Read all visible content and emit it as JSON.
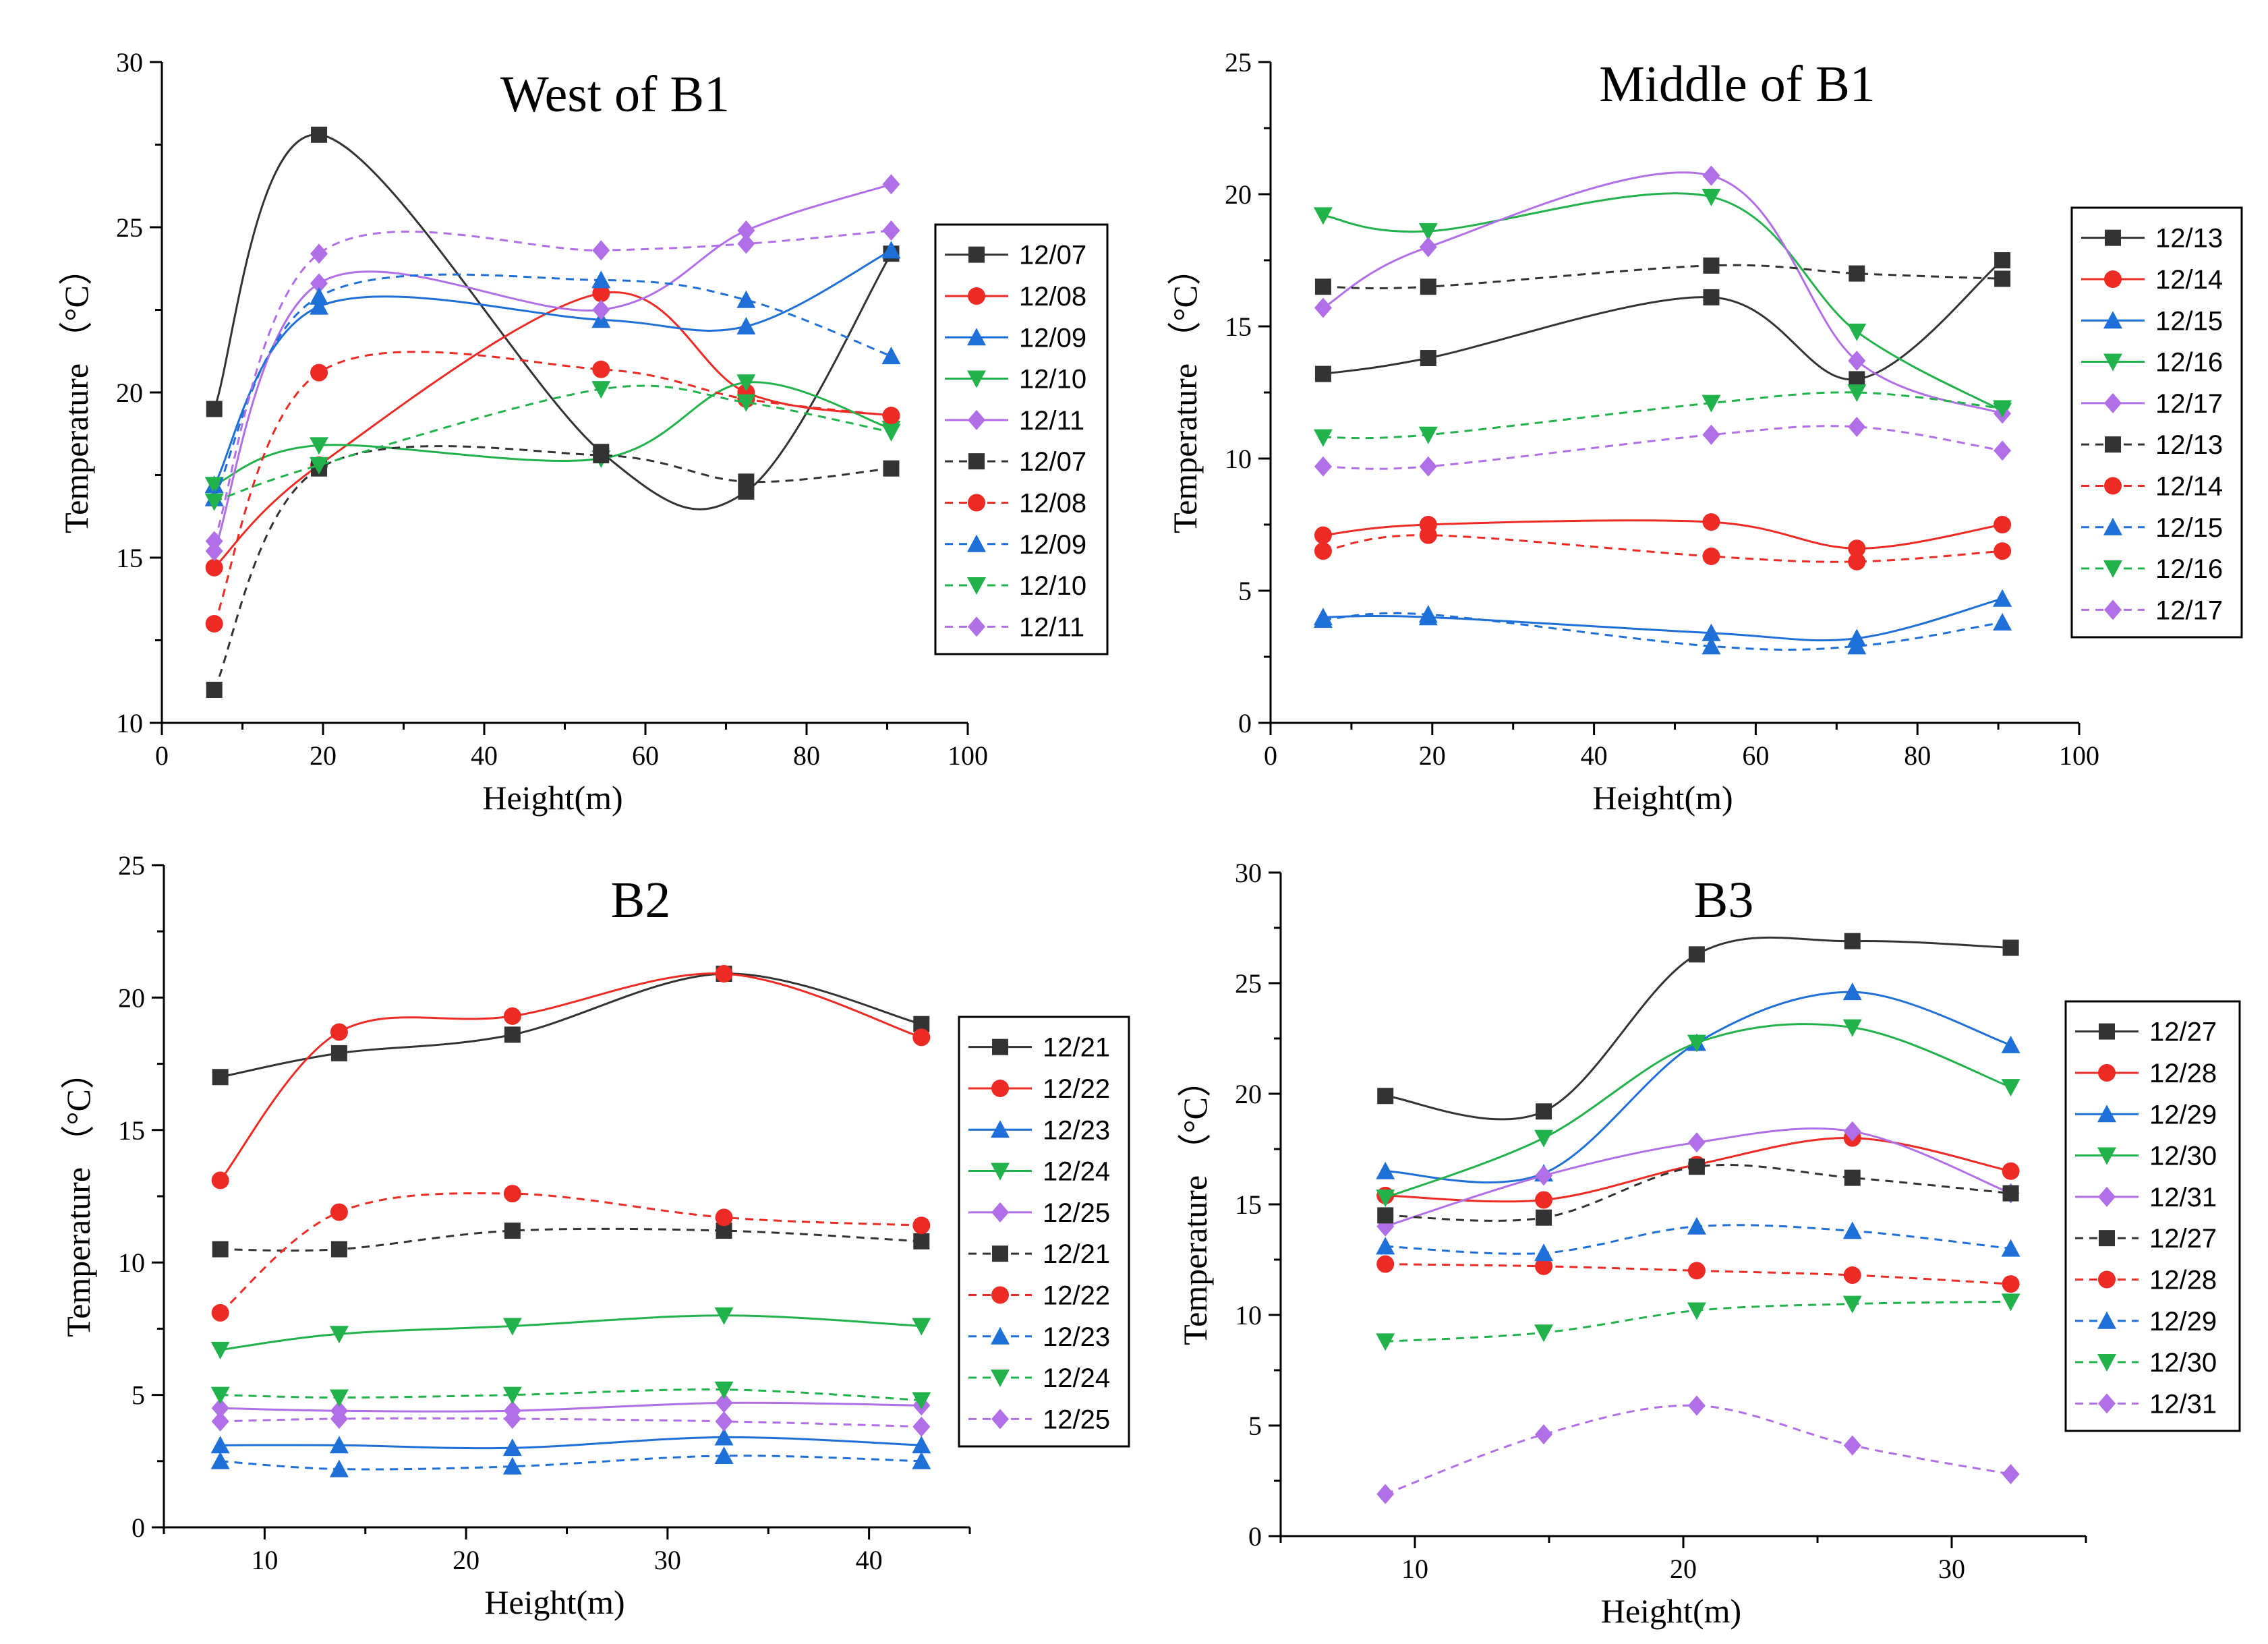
{
  "colors": {
    "black": "#333333",
    "red": "#ee2a24",
    "blue": "#1f6fd8",
    "green": "#22b24c",
    "purple": "#b06fe6",
    "axis": "#000000"
  },
  "chart_data": [
    {
      "type": "line",
      "title": "West of B1",
      "xlabel": "Height(m)",
      "ylabel": "Temperature （°C）",
      "xlim": [
        0,
        100
      ],
      "ylim": [
        10,
        30
      ],
      "xticks": [
        0,
        20,
        40,
        60,
        80,
        100
      ],
      "yticks": [
        10,
        15,
        20,
        25,
        30
      ],
      "legend_position": "right",
      "x": [
        6.5,
        19.5,
        54.5,
        72.5,
        90.5
      ],
      "series": [
        {
          "name": "12/07",
          "color": "black",
          "marker": "square",
          "dash": false,
          "values": [
            19.5,
            27.8,
            18.2,
            17.0,
            24.2
          ]
        },
        {
          "name": "12/08",
          "color": "red",
          "marker": "circle",
          "dash": false,
          "values": [
            14.7,
            17.8,
            23.0,
            20.0,
            19.3
          ]
        },
        {
          "name": "12/09",
          "color": "blue",
          "marker": "triangle-up",
          "dash": false,
          "values": [
            17.2,
            22.6,
            22.2,
            22.0,
            24.3
          ]
        },
        {
          "name": "12/10",
          "color": "green",
          "marker": "triangle-down",
          "dash": false,
          "values": [
            17.2,
            18.4,
            18.0,
            20.3,
            18.9
          ]
        },
        {
          "name": "12/11",
          "color": "purple",
          "marker": "diamond",
          "dash": false,
          "values": [
            15.2,
            23.3,
            22.5,
            24.9,
            26.3
          ]
        },
        {
          "name": "12/07",
          "color": "black",
          "marker": "square",
          "dash": true,
          "values": [
            11.0,
            17.7,
            18.1,
            17.3,
            17.7
          ]
        },
        {
          "name": "12/08",
          "color": "red",
          "marker": "circle",
          "dash": true,
          "values": [
            13.0,
            20.6,
            20.7,
            19.8,
            19.3
          ]
        },
        {
          "name": "12/09",
          "color": "blue",
          "marker": "triangle-up",
          "dash": true,
          "values": [
            16.8,
            22.9,
            23.4,
            22.8,
            21.1
          ]
        },
        {
          "name": "12/10",
          "color": "green",
          "marker": "triangle-down",
          "dash": true,
          "values": [
            16.7,
            17.8,
            20.1,
            19.7,
            18.8
          ]
        },
        {
          "name": "12/11",
          "color": "purple",
          "marker": "diamond",
          "dash": true,
          "values": [
            15.5,
            24.2,
            24.3,
            24.5,
            24.9
          ]
        }
      ]
    },
    {
      "type": "line",
      "title": "Middle of B1",
      "xlabel": "Height(m)",
      "ylabel": "Temperature （°C）",
      "xlim": [
        0,
        100
      ],
      "ylim": [
        0,
        25
      ],
      "xticks": [
        0,
        20,
        40,
        60,
        80,
        100
      ],
      "yticks": [
        0,
        5,
        10,
        15,
        20,
        25
      ],
      "legend_position": "right",
      "x": [
        6.5,
        19.5,
        54.5,
        72.5,
        90.5
      ],
      "series": [
        {
          "name": "12/13",
          "color": "black",
          "marker": "square",
          "dash": false,
          "values": [
            13.2,
            13.8,
            16.1,
            13.0,
            17.5
          ]
        },
        {
          "name": "12/14",
          "color": "red",
          "marker": "circle",
          "dash": false,
          "values": [
            7.1,
            7.5,
            7.6,
            6.6,
            7.5
          ]
        },
        {
          "name": "12/15",
          "color": "blue",
          "marker": "triangle-up",
          "dash": false,
          "values": [
            4.0,
            4.0,
            3.4,
            3.2,
            4.7
          ]
        },
        {
          "name": "12/16",
          "color": "green",
          "marker": "triangle-down",
          "dash": false,
          "values": [
            19.2,
            18.6,
            19.9,
            14.8,
            11.8
          ]
        },
        {
          "name": "12/17",
          "color": "purple",
          "marker": "diamond",
          "dash": false,
          "values": [
            15.7,
            18.0,
            20.7,
            13.7,
            11.7
          ]
        },
        {
          "name": "12/13",
          "color": "black",
          "marker": "square",
          "dash": true,
          "values": [
            16.5,
            16.5,
            17.3,
            17.0,
            16.8
          ]
        },
        {
          "name": "12/14",
          "color": "red",
          "marker": "circle",
          "dash": true,
          "values": [
            6.5,
            7.1,
            6.3,
            6.1,
            6.5
          ]
        },
        {
          "name": "12/15",
          "color": "blue",
          "marker": "triangle-up",
          "dash": true,
          "values": [
            3.9,
            4.1,
            2.9,
            2.9,
            3.8
          ]
        },
        {
          "name": "12/16",
          "color": "green",
          "marker": "triangle-down",
          "dash": true,
          "values": [
            10.8,
            10.9,
            12.1,
            12.5,
            11.9
          ]
        },
        {
          "name": "12/17",
          "color": "purple",
          "marker": "diamond",
          "dash": true,
          "values": [
            9.7,
            9.7,
            10.9,
            11.2,
            10.3
          ]
        }
      ]
    },
    {
      "type": "line",
      "title": "B2",
      "xlabel": "Height(m)",
      "ylabel": "Temperature （°C）",
      "xlim": [
        5,
        45
      ],
      "ylim": [
        0,
        25
      ],
      "xticks": [
        10,
        20,
        30,
        40
      ],
      "yticks": [
        0,
        5,
        10,
        15,
        20,
        25
      ],
      "legend_position": "right",
      "x": [
        7.8,
        13.7,
        22.3,
        32.8,
        42.6
      ],
      "series": [
        {
          "name": "12/21",
          "color": "black",
          "marker": "square",
          "dash": false,
          "values": [
            17.0,
            17.9,
            18.6,
            20.9,
            19.0
          ]
        },
        {
          "name": "12/22",
          "color": "red",
          "marker": "circle",
          "dash": false,
          "values": [
            13.1,
            18.7,
            19.3,
            20.9,
            18.5
          ]
        },
        {
          "name": "12/23",
          "color": "blue",
          "marker": "triangle-up",
          "dash": false,
          "values": [
            3.1,
            3.1,
            3.0,
            3.4,
            3.1
          ]
        },
        {
          "name": "12/24",
          "color": "green",
          "marker": "triangle-down",
          "dash": false,
          "values": [
            6.7,
            7.3,
            7.6,
            8.0,
            7.6
          ]
        },
        {
          "name": "12/25",
          "color": "purple",
          "marker": "diamond",
          "dash": false,
          "values": [
            4.5,
            4.4,
            4.4,
            4.7,
            4.6
          ]
        },
        {
          "name": "12/21",
          "color": "black",
          "marker": "square",
          "dash": true,
          "values": [
            10.5,
            10.5,
            11.2,
            11.2,
            10.8
          ]
        },
        {
          "name": "12/22",
          "color": "red",
          "marker": "circle",
          "dash": true,
          "values": [
            8.1,
            11.9,
            12.6,
            11.7,
            11.4
          ]
        },
        {
          "name": "12/23",
          "color": "blue",
          "marker": "triangle-up",
          "dash": true,
          "values": [
            2.5,
            2.2,
            2.3,
            2.7,
            2.5
          ]
        },
        {
          "name": "12/24",
          "color": "green",
          "marker": "triangle-down",
          "dash": true,
          "values": [
            5.0,
            4.9,
            5.0,
            5.2,
            4.8
          ]
        },
        {
          "name": "12/25",
          "color": "purple",
          "marker": "diamond",
          "dash": true,
          "values": [
            4.0,
            4.1,
            4.1,
            4.0,
            3.8
          ]
        }
      ]
    },
    {
      "type": "line",
      "title": "B3",
      "xlabel": "Height(m)",
      "ylabel": "Temperature （°C）",
      "xlim": [
        5,
        35
      ],
      "ylim": [
        0,
        30
      ],
      "xticks": [
        10,
        20,
        30
      ],
      "yticks": [
        0,
        5,
        10,
        15,
        20,
        25,
        30
      ],
      "legend_position": "right",
      "x": [
        8.9,
        14.8,
        20.5,
        26.3,
        32.2
      ],
      "series": [
        {
          "name": "12/27",
          "color": "black",
          "marker": "square",
          "dash": false,
          "values": [
            19.9,
            19.2,
            26.3,
            26.9,
            26.6
          ]
        },
        {
          "name": "12/28",
          "color": "red",
          "marker": "circle",
          "dash": false,
          "values": [
            15.4,
            15.2,
            16.8,
            18.0,
            16.5
          ]
        },
        {
          "name": "12/29",
          "color": "blue",
          "marker": "triangle-up",
          "dash": false,
          "values": [
            16.5,
            16.4,
            22.3,
            24.6,
            22.2
          ]
        },
        {
          "name": "12/30",
          "color": "green",
          "marker": "triangle-down",
          "dash": false,
          "values": [
            15.3,
            18.0,
            22.3,
            23.0,
            20.3
          ]
        },
        {
          "name": "12/31",
          "color": "purple",
          "marker": "diamond",
          "dash": false,
          "values": [
            14.0,
            16.3,
            17.8,
            18.3,
            15.5
          ]
        },
        {
          "name": "12/27",
          "color": "black",
          "marker": "square",
          "dash": true,
          "values": [
            14.5,
            14.4,
            16.7,
            16.2,
            15.5
          ]
        },
        {
          "name": "12/28",
          "color": "red",
          "marker": "circle",
          "dash": true,
          "values": [
            12.3,
            12.2,
            12.0,
            11.8,
            11.4
          ]
        },
        {
          "name": "12/29",
          "color": "blue",
          "marker": "triangle-up",
          "dash": true,
          "values": [
            13.1,
            12.8,
            14.0,
            13.8,
            13.0
          ]
        },
        {
          "name": "12/30",
          "color": "green",
          "marker": "triangle-down",
          "dash": true,
          "values": [
            8.8,
            9.2,
            10.2,
            10.5,
            10.6
          ]
        },
        {
          "name": "12/31",
          "color": "purple",
          "marker": "diamond",
          "dash": true,
          "values": [
            1.9,
            4.6,
            5.9,
            4.1,
            2.8
          ]
        }
      ]
    }
  ]
}
